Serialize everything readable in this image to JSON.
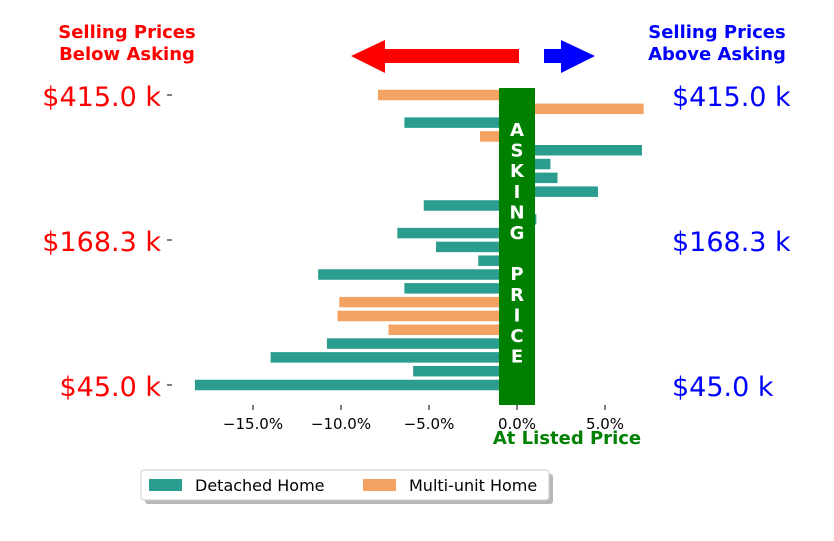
{
  "colors": {
    "detached": "#2a9d8f",
    "multi": "#f4a261",
    "below": "#ff0000",
    "above": "#0000ff",
    "asking": "#008000"
  },
  "header": {
    "below_line1": "Selling Prices",
    "below_line2": "Below Asking",
    "above_line1": "Selling Prices",
    "above_line2": "Above Asking"
  },
  "band": {
    "letters": [
      "A",
      "S",
      "K",
      "I",
      "N",
      "G",
      "",
      "P",
      "R",
      "I",
      "C",
      "E"
    ],
    "bottom_label": "At Listed Price"
  },
  "price_labels": {
    "left": [
      "$415.0 k",
      "$168.3 k",
      "$45.0 k"
    ],
    "right": [
      "$415.0 k",
      "$168.3 k",
      "$45.0 k"
    ]
  },
  "legend": {
    "detached": "Detached Home",
    "multi": "Multi-unit Home"
  },
  "chart_data": {
    "type": "bar",
    "orientation": "horizontal",
    "x_unit": "percent difference from asking price",
    "xlim": [
      -18.5,
      8.2
    ],
    "xticks": [
      -15,
      -10,
      -5,
      0,
      5
    ],
    "xtick_labels": [
      "−15.0%",
      "−10.0%",
      "−5.0%",
      "0.0%",
      "5.0%"
    ],
    "price_levels": [
      "$415.0 k",
      "$168.3 k",
      "$45.0 k"
    ],
    "bars": [
      {
        "type": "multi",
        "value": -7.9
      },
      {
        "type": "multi",
        "value": 7.2
      },
      {
        "type": "detached",
        "value": -6.4
      },
      {
        "type": "multi",
        "value": -2.1
      },
      {
        "type": "detached",
        "value": 7.1
      },
      {
        "type": "detached",
        "value": 1.9
      },
      {
        "type": "detached",
        "value": 2.3
      },
      {
        "type": "detached",
        "value": 4.6
      },
      {
        "type": "detached",
        "value": -5.3
      },
      {
        "type": "detached",
        "value": 1.1
      },
      {
        "type": "detached",
        "value": -6.8
      },
      {
        "type": "detached",
        "value": -4.6
      },
      {
        "type": "detached",
        "value": -2.2
      },
      {
        "type": "detached",
        "value": -11.3
      },
      {
        "type": "detached",
        "value": -6.4
      },
      {
        "type": "multi",
        "value": -10.1
      },
      {
        "type": "multi",
        "value": -10.2
      },
      {
        "type": "multi",
        "value": -7.3
      },
      {
        "type": "detached",
        "value": -10.8
      },
      {
        "type": "detached",
        "value": -14.0
      },
      {
        "type": "detached",
        "value": -5.9
      },
      {
        "type": "detached",
        "value": -18.3
      }
    ]
  }
}
